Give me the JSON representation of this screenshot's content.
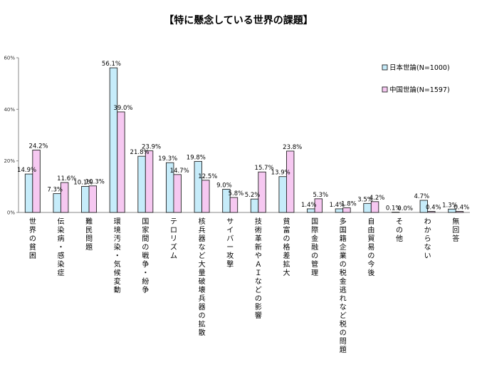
{
  "chart_data": {
    "type": "bar",
    "title": "【特に懸念している世界の課題】",
    "categories": [
      "世界の貧困",
      "伝染病・感染症",
      "難民問題",
      "環境汚染・気候変動",
      "国家間の戦争・紛争",
      "テロリズム",
      "核兵器など大量破壊兵器の拡散",
      "サイバー攻撃",
      "技術革新やＡＩなどの影響",
      "貧富の格差拡大",
      "国際金融の管理",
      "多国籍企業の税金逃れなど税の問題",
      "自由貿易の今後",
      "その他",
      "わからない",
      "無回答"
    ],
    "series": [
      {
        "name": "日本世論(N=1000)",
        "color": "#c6ecfa",
        "values": [
          14.9,
          7.3,
          10.1,
          56.1,
          21.8,
          19.3,
          19.8,
          9.0,
          5.2,
          13.9,
          1.4,
          1.4,
          3.5,
          0.1,
          4.7,
          1.3
        ],
        "labels": [
          "14.9%",
          "7.3%",
          "10.1%",
          "56.1%",
          "21.8%",
          "19.3%",
          "19.8%",
          "9.0%",
          "5.2%",
          "13.9%",
          "1.4%",
          "1.4%",
          "3.5%",
          "0.1%",
          "4.7%",
          "1.3%"
        ]
      },
      {
        "name": "中国世論(N=1597)",
        "color": "#f6c8f1",
        "values": [
          24.2,
          11.6,
          10.3,
          39.0,
          23.9,
          14.7,
          12.5,
          5.8,
          15.7,
          23.8,
          5.3,
          1.8,
          4.2,
          0.0,
          0.4,
          0.4
        ],
        "labels": [
          "24.2%",
          "11.6%",
          "10.3%",
          "39.0%",
          "23.9%",
          "14.7%",
          "12.5%",
          "5.8%",
          "15.7%",
          "23.8%",
          "5.3%",
          "1.8%",
          "4.2%",
          "0.0%",
          "0.4%",
          "0.4%"
        ]
      }
    ],
    "yticks": [
      "0%",
      "20%",
      "40%",
      "60%"
    ],
    "ylim": [
      0,
      60
    ],
    "legend_position": "top-right",
    "grid": false
  }
}
